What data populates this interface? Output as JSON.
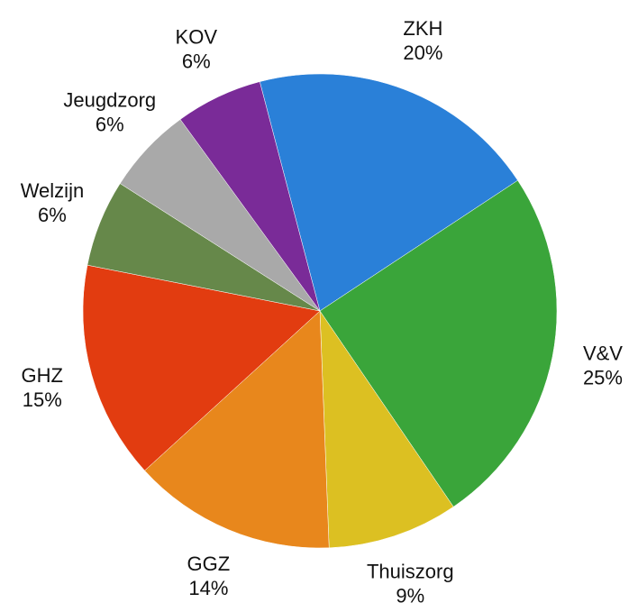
{
  "chart_data": {
    "type": "pie",
    "categories": [
      "ZKH",
      "V&V",
      "Thuiszorg",
      "GGZ",
      "GHZ",
      "Welzijn",
      "Jeugdzorg",
      "KOV"
    ],
    "values": [
      20,
      25,
      9,
      14,
      15,
      6,
      6,
      6
    ],
    "value_labels": [
      "20%",
      "25%",
      "9%",
      "14%",
      "15%",
      "6%",
      "6%",
      "6%"
    ],
    "colors": [
      "#2a80d8",
      "#3aa53a",
      "#dcc022",
      "#e8871c",
      "#e23c10",
      "#66884a",
      "#a9a9a9",
      "#7a2b98"
    ]
  }
}
